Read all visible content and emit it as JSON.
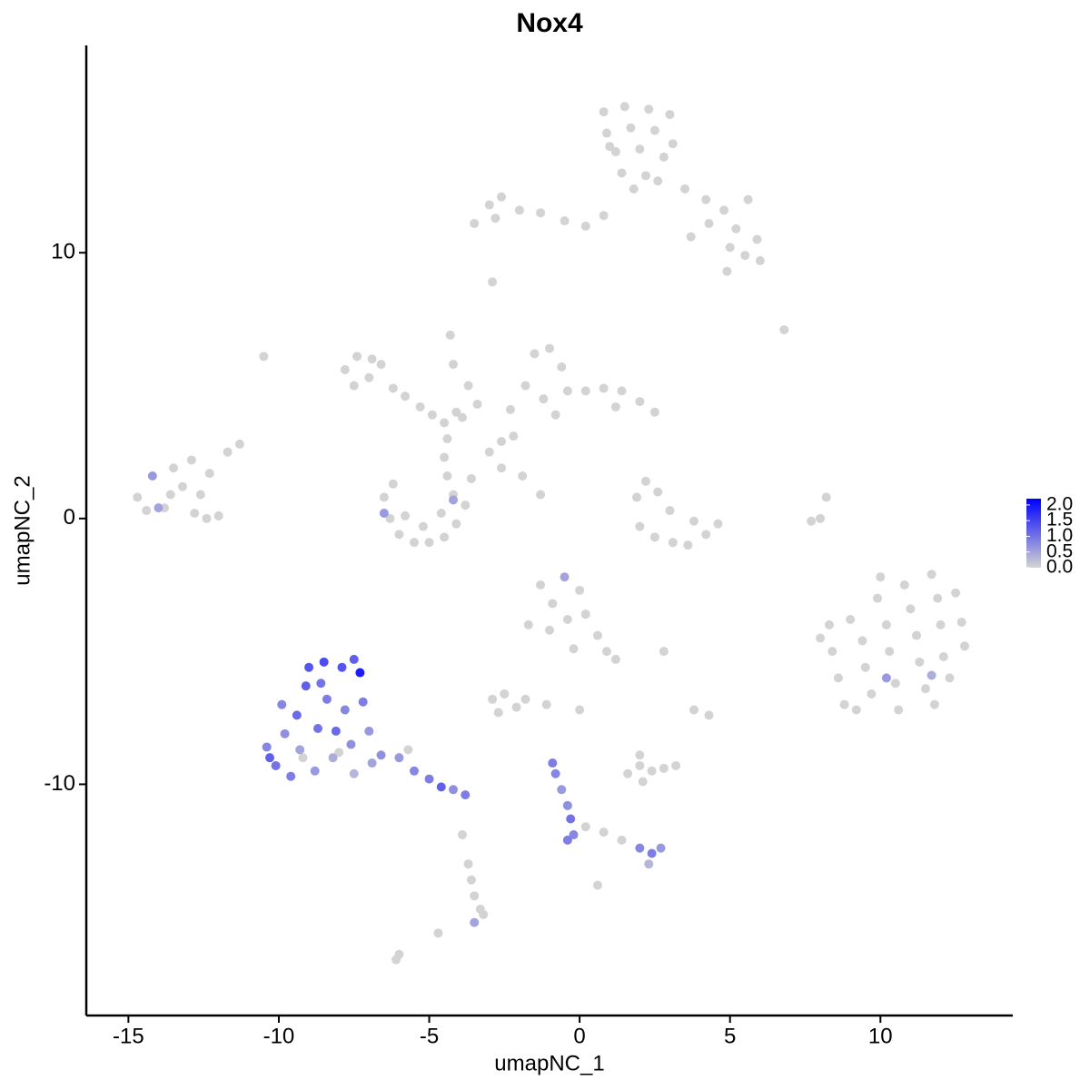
{
  "chart_data": {
    "type": "scatter",
    "title": "Nox4",
    "x_label": "umapNC_1",
    "y_label": "umapNC_2",
    "xlim": [
      -16.4,
      14.4
    ],
    "ylim": [
      -18.7,
      17.8
    ],
    "xticks": [
      -15,
      -10,
      -5,
      0,
      5,
      10
    ],
    "yticks": [
      -10,
      0,
      10
    ],
    "color_low": "#d3d3d3",
    "color_high": "#0000ff",
    "colorlim": [
      0,
      2.2
    ],
    "colorticks": [
      {
        "value": 0,
        "label": "0.0"
      },
      {
        "value": 0.5,
        "label": "0.5"
      },
      {
        "value": 1,
        "label": "1.0"
      },
      {
        "value": 1.5,
        "label": "1.5"
      },
      {
        "value": 2,
        "label": "2.0"
      }
    ],
    "x": [
      0.8,
      1.5,
      2.3,
      3.0,
      0.9,
      1.7,
      2.5,
      3.1,
      1.2,
      2.0,
      2.8,
      1.4,
      2.2,
      1.8,
      2.6,
      1.0,
      3.5,
      4.2,
      4.8,
      5.6,
      5.2,
      5.9,
      5.5,
      6.0,
      4.9,
      5.0,
      4.3,
      3.7,
      -3.5,
      -3.0,
      -2.6,
      -2.0,
      -1.3,
      -0.5,
      0.2,
      0.8,
      -2.8,
      -2.9,
      6.8,
      -14.7,
      -14.2,
      -13.8,
      -13.5,
      -13.2,
      -12.9,
      -12.6,
      -12.3,
      -12.8,
      -13.6,
      -14.0,
      -12.0,
      -11.7,
      -11.3,
      -14.4,
      -12.4,
      -7.8,
      -7.4,
      -7.0,
      -6.6,
      -6.2,
      -5.8,
      -5.3,
      -4.9,
      -4.5,
      -4.1,
      -3.9,
      -7.5,
      -6.9,
      -4.3,
      -4.2,
      -3.7,
      -3.4,
      -10.5,
      -4.4,
      -4.5,
      -4.4,
      -6.5,
      -6.3,
      -6.0,
      -5.5,
      -5.0,
      -4.5,
      -4.1,
      -3.8,
      -3.6,
      -5.8,
      -5.2,
      -4.6,
      -6.2,
      -4.2,
      -6.5,
      -4.2,
      -2.3,
      -1.8,
      -1.5,
      -1.0,
      -0.6,
      -1.2,
      -0.4,
      0.2,
      0.8,
      1.4,
      2.0,
      2.5,
      1.2,
      -0.8,
      -2.6,
      -2.2,
      -3.0,
      -2.6,
      -1.9,
      -1.3,
      2.2,
      2.6,
      3.0,
      2.0,
      2.5,
      3.1,
      3.6,
      4.2,
      4.6,
      3.8,
      1.9,
      8.0,
      8.2,
      7.7,
      8.0,
      8.4,
      8.6,
      8.8,
      9.0,
      9.4,
      9.5,
      9.7,
      9.9,
      10.2,
      10.3,
      10.5,
      10.6,
      10.8,
      11.0,
      11.2,
      11.3,
      11.5,
      11.7,
      11.9,
      12.0,
      12.1,
      12.3,
      12.5,
      12.7,
      12.8,
      9.2,
      10.0,
      11.8,
      8.3,
      10.2,
      11.7,
      -1.3,
      -0.9,
      -0.5,
      -0.4,
      0.0,
      0.2,
      -1.0,
      0.6,
      0.9,
      1.2,
      -0.2,
      2.8,
      -2.9,
      -2.5,
      -2.1,
      -2.7,
      -1.8,
      -1.7,
      -1.1,
      0.0,
      3.8,
      4.3,
      1.6,
      2.0,
      2.4,
      2.8,
      3.2,
      2.1,
      2.0,
      -10.4,
      -10.1,
      -9.8,
      -9.6,
      -9.4,
      -9.3,
      -9.1,
      -9.0,
      -8.8,
      -8.7,
      -8.5,
      -8.4,
      -8.2,
      -8.1,
      -7.9,
      -7.8,
      -7.6,
      -7.5,
      -7.3,
      -7.2,
      -7.0,
      -6.9,
      -9.9,
      -9.2,
      -8.0,
      -10.3,
      -8.6,
      -7.5,
      -6.6,
      -6.0,
      -5.5,
      -5.0,
      -4.6,
      -4.2,
      -3.8,
      -5.7,
      -0.9,
      -0.8,
      -0.6,
      -0.4,
      -0.3,
      -0.2,
      -0.4,
      0.2,
      0.8,
      1.4,
      2.0,
      2.4,
      2.7,
      2.3,
      -3.6,
      -3.5,
      -3.3,
      -3.5,
      -3.2,
      -3.7,
      -3.9,
      -4.7,
      -6.0,
      -6.1,
      0.6
    ],
    "y": [
      15.3,
      15.5,
      15.4,
      15.2,
      14.5,
      14.7,
      14.6,
      14.1,
      13.8,
      13.9,
      13.6,
      13.0,
      12.9,
      12.4,
      12.7,
      14.0,
      12.4,
      12.0,
      11.6,
      12.0,
      10.9,
      10.5,
      9.9,
      9.7,
      9.3,
      10.2,
      11.1,
      10.6,
      11.1,
      11.8,
      12.1,
      11.6,
      11.5,
      11.2,
      11.0,
      11.4,
      11.3,
      8.9,
      7.1,
      0.8,
      1.6,
      0.4,
      1.9,
      1.2,
      2.2,
      0.9,
      1.7,
      0.2,
      0.9,
      0.4,
      0.1,
      2.5,
      2.8,
      0.3,
      0.0,
      5.6,
      6.1,
      5.3,
      5.8,
      4.9,
      4.6,
      4.2,
      3.9,
      3.6,
      4.0,
      3.8,
      5.0,
      6.0,
      6.9,
      5.8,
      5.0,
      4.3,
      6.1,
      3.0,
      2.3,
      1.6,
      0.8,
      0.0,
      -0.6,
      -0.9,
      -0.9,
      -0.7,
      -0.2,
      0.5,
      1.5,
      0.1,
      -0.3,
      0.2,
      1.3,
      0.9,
      0.2,
      0.7,
      4.1,
      5.0,
      6.2,
      6.4,
      5.7,
      4.5,
      4.8,
      4.8,
      4.9,
      4.8,
      4.4,
      4.0,
      4.2,
      3.9,
      2.9,
      3.1,
      2.5,
      1.9,
      1.6,
      0.9,
      1.4,
      1.0,
      0.3,
      -0.3,
      -0.7,
      -0.9,
      -1.0,
      -0.6,
      -0.2,
      -0.1,
      0.8,
      0.0,
      0.8,
      -0.1,
      -4.5,
      -5.0,
      -6.0,
      -7.0,
      -3.8,
      -4.6,
      -5.6,
      -6.6,
      -3.0,
      -4.0,
      -5.0,
      -6.2,
      -7.2,
      -2.5,
      -3.4,
      -4.4,
      -5.4,
      -6.4,
      -2.1,
      -3.0,
      -4.0,
      -5.2,
      -6.0,
      -2.8,
      -3.9,
      -4.8,
      -7.2,
      -2.2,
      -7.0,
      -4.0,
      -6.0,
      -5.9,
      -2.5,
      -3.2,
      -2.2,
      -3.8,
      -2.7,
      -3.6,
      -4.2,
      -4.4,
      -5.0,
      -5.3,
      -4.9,
      -5.0,
      -6.8,
      -6.6,
      -7.1,
      -7.3,
      -6.8,
      -4.0,
      -7.0,
      -7.2,
      -7.2,
      -7.4,
      -9.6,
      -9.3,
      -9.5,
      -9.4,
      -9.3,
      -9.9,
      -8.9,
      -8.6,
      -9.3,
      -8.1,
      -9.7,
      -7.4,
      -8.7,
      -6.3,
      -5.6,
      -9.5,
      -7.9,
      -5.4,
      -6.8,
      -9.0,
      -8.0,
      -5.6,
      -7.2,
      -8.5,
      -9.6,
      -5.8,
      -6.9,
      -8.0,
      -9.2,
      -7.0,
      -9.0,
      -8.8,
      -9.0,
      -6.2,
      -5.3,
      -8.9,
      -9.0,
      -9.5,
      -9.8,
      -10.1,
      -10.2,
      -10.4,
      -8.7,
      -9.2,
      -9.6,
      -10.2,
      -10.8,
      -11.3,
      -11.9,
      -12.1,
      -11.6,
      -11.8,
      -12.1,
      -12.4,
      -12.6,
      -12.4,
      -13.0,
      -13.6,
      -14.2,
      -14.7,
      -15.2,
      -14.9,
      -13.0,
      -11.9,
      -15.6,
      -16.4,
      -16.6,
      -13.8
    ],
    "values": [
      0,
      0,
      0,
      0,
      0,
      0,
      0,
      0,
      0,
      0,
      0,
      0,
      0,
      0,
      0,
      0,
      0,
      0,
      0,
      0,
      0,
      0,
      0,
      0,
      0,
      0,
      0,
      0,
      0,
      0,
      0,
      0,
      0,
      0,
      0,
      0,
      0,
      0,
      0,
      0,
      0.6,
      0,
      0,
      0,
      0,
      0,
      0,
      0,
      0,
      0.5,
      0,
      0,
      0,
      0,
      0,
      0,
      0,
      0,
      0,
      0,
      0,
      0,
      0,
      0,
      0,
      0,
      0,
      0,
      0,
      0,
      0,
      0,
      0,
      0,
      0,
      0,
      0,
      0,
      0,
      0,
      0,
      0,
      0,
      0,
      0,
      0,
      0,
      0,
      0,
      0,
      0.6,
      0.5,
      0,
      0,
      0,
      0,
      0,
      0,
      0,
      0,
      0,
      0,
      0,
      0,
      0,
      0,
      0,
      0,
      0,
      0,
      0,
      0,
      0,
      0,
      0,
      0,
      0,
      0,
      0,
      0,
      0,
      0,
      0,
      0,
      0,
      0,
      0,
      0,
      0,
      0,
      0,
      0,
      0,
      0,
      0,
      0,
      0,
      0,
      0,
      0,
      0,
      0,
      0,
      0,
      0,
      0,
      0,
      0,
      0,
      0,
      0,
      0,
      0,
      0,
      0,
      0,
      0.6,
      0.4,
      0,
      0,
      0.5,
      0,
      0,
      0,
      0,
      0,
      0,
      0,
      0,
      0,
      0,
      0,
      0,
      0,
      0,
      0,
      0,
      0,
      0,
      0,
      0,
      0,
      0,
      0,
      0,
      0,
      0,
      0.8,
      1.0,
      0.7,
      0.9,
      1.1,
      0.5,
      1.2,
      1.3,
      0.6,
      1.0,
      1.4,
      0.9,
      0.4,
      1.1,
      1.3,
      0.8,
      0.7,
      0.3,
      1.9,
      0.9,
      0.6,
      0.5,
      0.8,
      0,
      0,
      1.2,
      1.0,
      1.2,
      0.7,
      0.6,
      0.8,
      0.9,
      1.2,
      0.7,
      0.9,
      0,
      0.9,
      0.8,
      0.6,
      0.7,
      1.0,
      0.8,
      0.9,
      0,
      0,
      0,
      0.8,
      0.9,
      0.6,
      0.3,
      0,
      0,
      0,
      0.5,
      0,
      0,
      0,
      0,
      0,
      0,
      0
    ]
  }
}
